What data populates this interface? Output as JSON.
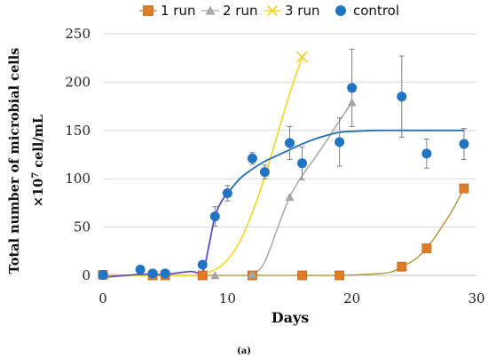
{
  "colors": {
    "run1": "#E07B27",
    "run2": "#A6A6A6",
    "run3": "#F2D21B",
    "control": "#1F74C4",
    "control_fit": "#1F6DB4",
    "control_early_fit": "#5B4FC0",
    "gridline": "#D9D9D9",
    "errorbar": "#7F7F7F"
  },
  "icons": {
    "run1": "square-marker-icon",
    "run2": "triangle-marker-icon",
    "run3": "x-marker-icon",
    "control": "circle-marker-icon"
  },
  "chart_data": {
    "type": "scatter",
    "xlabel": "Days",
    "ylabel_line1": "Total number of microbial cells",
    "ylabel_line2_base": "×10",
    "ylabel_line2_exp": "7",
    "ylabel_line2_unit": " cell/mL",
    "caption": "(a)",
    "xlim": [
      0,
      30
    ],
    "ylim": [
      0,
      250
    ],
    "xticks": [
      0,
      10,
      20,
      30
    ],
    "yticks": [
      0,
      50,
      100,
      150,
      200,
      250
    ],
    "grid": "horizontal",
    "legend": "top",
    "series": [
      {
        "name": "1 run",
        "marker": "square",
        "x": [
          0,
          4,
          5,
          8,
          12,
          16,
          19,
          24,
          26,
          29
        ],
        "y": [
          0.5,
          0,
          0,
          0,
          0,
          0,
          0,
          9,
          28,
          90
        ]
      },
      {
        "name": "2 run",
        "marker": "triangle",
        "x": [
          0,
          9,
          12,
          15,
          20
        ],
        "y": [
          0,
          0,
          1,
          81,
          179
        ]
      },
      {
        "name": "3 run",
        "marker": "x",
        "x": [
          16
        ],
        "y": [
          226
        ]
      },
      {
        "name": "control",
        "marker": "circle",
        "x": [
          0,
          3,
          4,
          5,
          8,
          9,
          10,
          12,
          13,
          15,
          16,
          19,
          20,
          24,
          26,
          29
        ],
        "y": [
          0.5,
          6,
          2,
          2,
          11,
          61,
          85,
          121,
          107,
          137,
          116,
          138,
          194,
          185,
          126,
          136
        ],
        "err": [
          0,
          0,
          0,
          0,
          0,
          10,
          8,
          6,
          7,
          17,
          17,
          25,
          40,
          42,
          15,
          16
        ]
      }
    ],
    "fits": [
      {
        "series": "1 run",
        "x": [
          0,
          8,
          12,
          16,
          19,
          21,
          23,
          24,
          25,
          26,
          27,
          28,
          29
        ],
        "y": [
          0.5,
          0,
          0,
          0,
          0,
          1,
          3,
          9,
          16,
          28,
          46,
          66,
          90
        ]
      },
      {
        "series": "2 run",
        "x": [
          11.8,
          12.5,
          13,
          13.5,
          14,
          15,
          16,
          17,
          18,
          19,
          20
        ],
        "y": [
          0,
          5,
          14,
          30,
          48,
          81,
          103,
          121,
          140,
          160,
          179
        ]
      },
      {
        "series": "3 run",
        "x": [
          0,
          7,
          8,
          9,
          10,
          11,
          12,
          13,
          14,
          15,
          16
        ],
        "y": [
          0,
          0,
          2,
          6,
          16,
          35,
          65,
          102,
          145,
          188,
          226
        ]
      },
      {
        "series": "control-early",
        "x": [
          0,
          3,
          4,
          5,
          7,
          8,
          8.5,
          9,
          9.5,
          10
        ],
        "y": [
          -2,
          1,
          1,
          1,
          4,
          4,
          30,
          61,
          76,
          85
        ]
      },
      {
        "series": "control",
        "x": [
          10,
          11,
          12,
          13,
          14,
          15,
          16,
          17,
          18,
          19,
          20,
          22,
          24,
          26,
          29
        ],
        "y": [
          85,
          100,
          110,
          118,
          124,
          130,
          136,
          141,
          145,
          148,
          149,
          150,
          150,
          150,
          150
        ]
      }
    ]
  }
}
